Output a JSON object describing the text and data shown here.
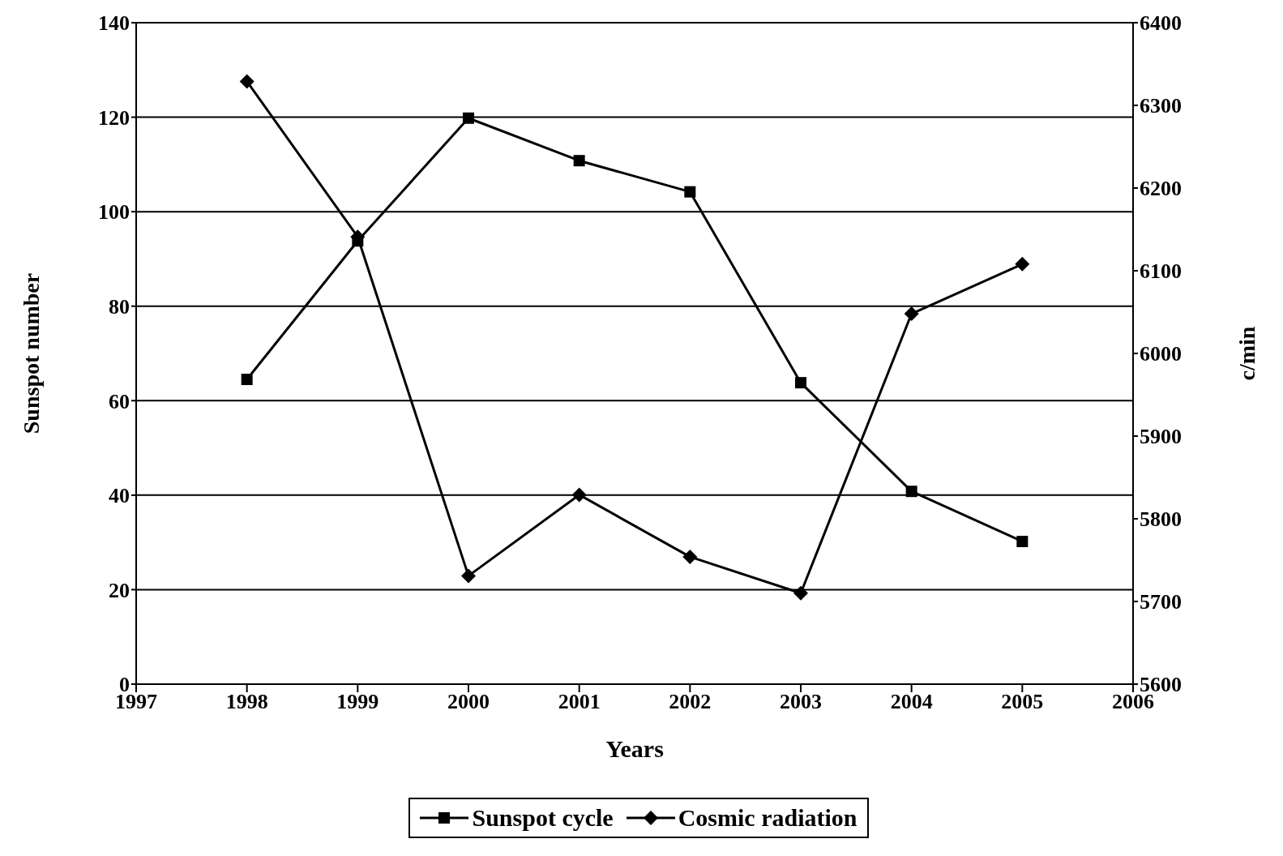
{
  "chart_data": {
    "type": "line",
    "xlabel": "Years",
    "ylabel": "Sunspot number",
    "y2label": "c/min",
    "x": [
      1998,
      1999,
      2000,
      2001,
      2002,
      2003,
      2004,
      2005
    ],
    "series": [
      {
        "name": "Sunspot cycle",
        "color": "#000000",
        "marker": "square",
        "values": [
          64.5,
          93.8,
          119.8,
          110.8,
          104.2,
          63.8,
          40.8,
          30.2
        ]
      },
      {
        "name": "Cosmic radiation",
        "color": "#000000",
        "marker": "diamond",
        "axis": "y2",
        "values": [
          6329,
          6141,
          5731,
          5829,
          5754,
          5710,
          6048,
          6108
        ]
      }
    ],
    "xlim": [
      1997,
      2006
    ],
    "xticks": [
      1997,
      1998,
      1999,
      2000,
      2001,
      2002,
      2003,
      2004,
      2005,
      2006
    ],
    "ylim": [
      0,
      140
    ],
    "yticks": [
      0,
      20,
      40,
      60,
      80,
      100,
      120,
      140
    ],
    "y2lim": [
      5600,
      6400
    ],
    "y2ticks": [
      5600,
      5700,
      5800,
      5900,
      6000,
      6100,
      6200,
      6300,
      6400
    ],
    "grid": "y",
    "legend": "bottom",
    "line_style": "solid"
  }
}
